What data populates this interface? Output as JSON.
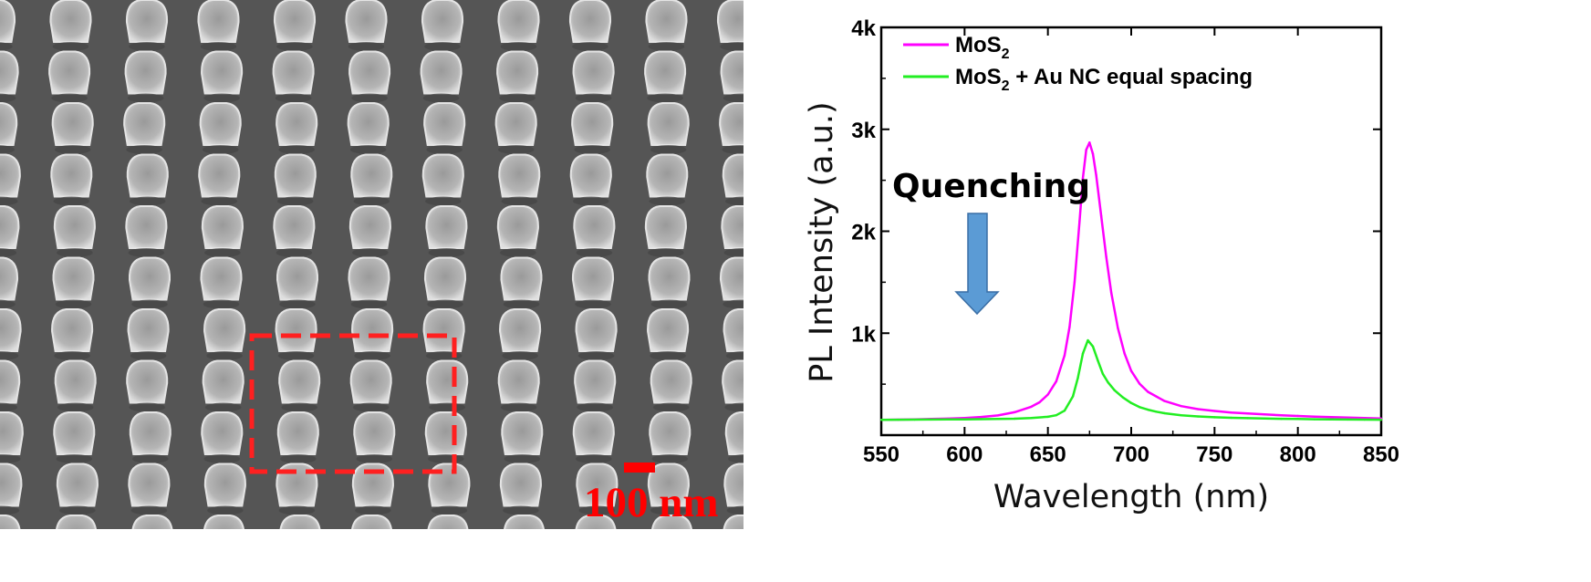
{
  "sem_image": {
    "scale_bar_label": "100 nm",
    "scale_color": "#ff0000",
    "highlight_color": "#ff2020"
  },
  "chart_data": {
    "type": "line",
    "title": "",
    "xlabel": "Wavelength (nm)",
    "ylabel": "PL Intensity (a.u.)",
    "xlim": [
      550,
      850
    ],
    "ylim": [
      0,
      4000
    ],
    "x_ticks": [
      550,
      600,
      650,
      700,
      750,
      800,
      850
    ],
    "x_tick_labels": [
      "550",
      "600",
      "650",
      "700",
      "750",
      "800",
      "850"
    ],
    "y_ticks": [
      1000,
      2000,
      3000,
      4000
    ],
    "y_tick_labels": [
      "1k",
      "2k",
      "3k",
      "4k"
    ],
    "grid": false,
    "legend_position": "top-left",
    "series": [
      {
        "name": "MoS2",
        "legend_main": "MoS",
        "legend_sub": "2",
        "legend_rest": "",
        "color": "#ff00ff",
        "x": [
          550,
          560,
          570,
          580,
          590,
          600,
          610,
          620,
          630,
          640,
          645,
          650,
          655,
          660,
          663,
          666,
          669,
          671,
          673,
          675,
          677,
          679,
          682,
          685,
          688,
          692,
          696,
          700,
          705,
          710,
          720,
          730,
          740,
          750,
          760,
          770,
          780,
          790,
          800,
          810,
          820,
          830,
          840,
          850
        ],
        "values": [
          150,
          152,
          155,
          158,
          162,
          168,
          178,
          193,
          225,
          278,
          322,
          398,
          527,
          780,
          1060,
          1500,
          2100,
          2520,
          2800,
          2870,
          2760,
          2550,
          2150,
          1750,
          1400,
          1050,
          800,
          630,
          505,
          425,
          335,
          285,
          255,
          237,
          222,
          212,
          203,
          195,
          188,
          182,
          177,
          172,
          168,
          163
        ]
      },
      {
        "name": "MoS2 + Au NC equal spacing",
        "legend_main": "MoS",
        "legend_sub": "2",
        "legend_rest": " + Au NC equal spacing",
        "color": "#22ee22",
        "x": [
          550,
          560,
          570,
          580,
          590,
          600,
          610,
          620,
          630,
          640,
          650,
          655,
          660,
          665,
          668,
          671,
          674,
          677,
          680,
          683,
          686,
          690,
          695,
          700,
          705,
          710,
          715,
          720,
          730,
          740,
          750,
          760,
          770,
          780,
          790,
          800,
          810,
          820,
          830,
          840,
          850
        ],
        "values": [
          150,
          151,
          152,
          153,
          154,
          155,
          157,
          159,
          161,
          168,
          180,
          195,
          240,
          380,
          560,
          800,
          930,
          870,
          730,
          600,
          520,
          440,
          370,
          315,
          275,
          250,
          230,
          215,
          195,
          183,
          175,
          170,
          166,
          163,
          160,
          158,
          156,
          155,
          153,
          152,
          151
        ]
      }
    ],
    "annotations": [
      {
        "text": "Quenching",
        "arrow": "down",
        "arrow_color": "#5b9bd5",
        "arrow_edge": "#3a6ea5"
      }
    ]
  }
}
